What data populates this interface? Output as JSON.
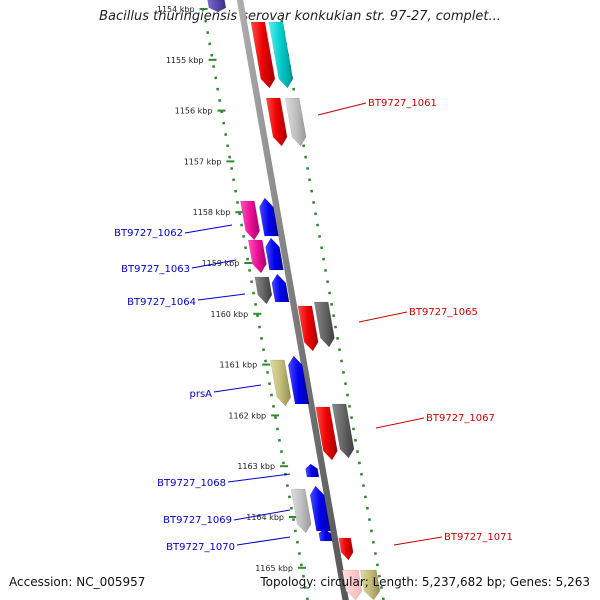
{
  "title": "Bacillus thuringiensis serovar konkukian str. 97-27, complet...",
  "accession": "Accession: NC_005957",
  "summary": "Topology: circular; Length: 5,237,682 bp; Genes: 5,263",
  "ticks": [
    {
      "label": "1154 kbp"
    },
    {
      "label": "1155 kbp"
    },
    {
      "label": "1156 kbp"
    },
    {
      "label": "1157 kbp"
    },
    {
      "label": "1158 kbp"
    },
    {
      "label": "1159 kbp"
    },
    {
      "label": "1160 kbp"
    },
    {
      "label": "1161 kbp"
    },
    {
      "label": "1162 kbp"
    },
    {
      "label": "1163 kbp"
    },
    {
      "label": "1164 kbp"
    },
    {
      "label": "1165 kbp"
    }
  ],
  "gene_labels": [
    {
      "text": "BT9727_1061",
      "strand": "reverse"
    },
    {
      "text": "BT9727_1062",
      "strand": "forward"
    },
    {
      "text": "BT9727_1063",
      "strand": "forward"
    },
    {
      "text": "BT9727_1064",
      "strand": "forward"
    },
    {
      "text": "BT9727_1065",
      "strand": "reverse"
    },
    {
      "text": "prsA",
      "strand": "forward"
    },
    {
      "text": "BT9727_1067",
      "strand": "reverse"
    },
    {
      "text": "BT9727_1068",
      "strand": "forward"
    },
    {
      "text": "BT9727_1069",
      "strand": "forward"
    },
    {
      "text": "BT9727_1070",
      "strand": "forward"
    },
    {
      "text": "BT9727_1071",
      "strand": "reverse"
    }
  ],
  "colors": {
    "forward_label": "#0000cc",
    "reverse_label": "#cc0000",
    "backbone": "#8c8c8c",
    "tick_dots": "#2e8b2e"
  }
}
